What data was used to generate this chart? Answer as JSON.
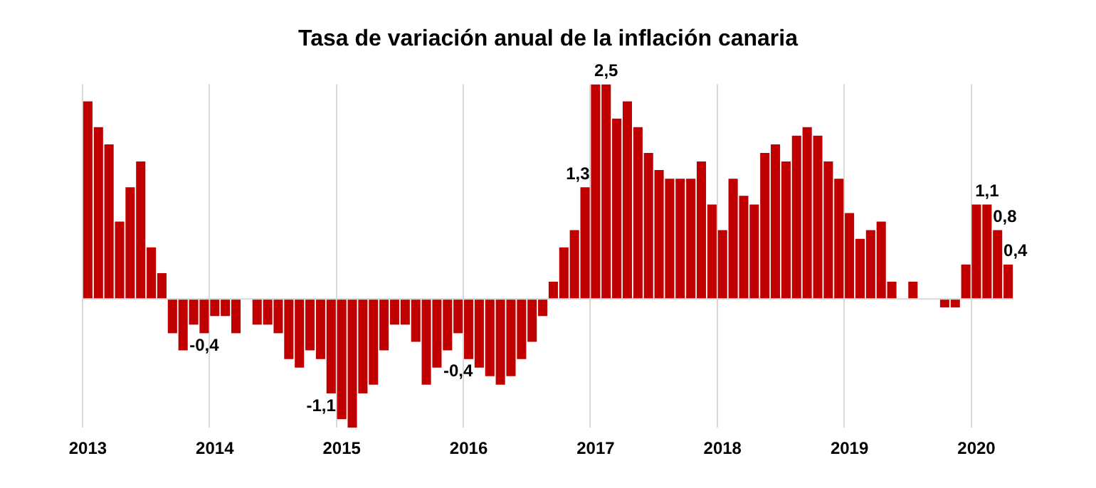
{
  "chart_data": {
    "type": "bar",
    "title": "Tasa de variación anual de la inflación canaria",
    "categories": [
      "2013",
      null,
      null,
      null,
      null,
      null,
      null,
      null,
      null,
      null,
      null,
      null,
      "2014",
      null,
      null,
      null,
      null,
      null,
      null,
      null,
      null,
      null,
      null,
      null,
      "2015",
      null,
      null,
      null,
      null,
      null,
      null,
      null,
      null,
      null,
      null,
      null,
      "2016",
      null,
      null,
      null,
      null,
      null,
      null,
      null,
      null,
      null,
      null,
      null,
      "2017",
      null,
      null,
      null,
      null,
      null,
      null,
      null,
      null,
      null,
      null,
      null,
      "2018",
      null,
      null,
      null,
      null,
      null,
      null,
      null,
      null,
      null,
      null,
      null,
      "2019",
      null,
      null,
      null,
      null,
      null,
      null,
      null,
      null,
      null,
      null,
      null,
      "2020",
      null,
      null,
      null
    ],
    "values": [
      2.3,
      2.0,
      1.8,
      0.9,
      1.3,
      1.6,
      0.6,
      0.3,
      -0.4,
      -0.6,
      -0.3,
      -0.4,
      -0.2,
      -0.2,
      -0.4,
      0,
      -0.3,
      -0.3,
      -0.4,
      -0.7,
      -0.8,
      -0.6,
      -0.7,
      -1.1,
      -1.4,
      -1.5,
      -1.1,
      -1.0,
      -0.6,
      -0.3,
      -0.3,
      -0.5,
      -1.0,
      -0.8,
      -0.6,
      -0.4,
      -0.7,
      -0.8,
      -0.9,
      -1.0,
      -0.9,
      -0.7,
      -0.5,
      -0.2,
      0.2,
      0.6,
      0.8,
      1.3,
      2.5,
      2.5,
      2.1,
      2.3,
      2.0,
      1.7,
      1.5,
      1.4,
      1.4,
      1.4,
      1.6,
      1.1,
      0.8,
      1.4,
      1.2,
      1.1,
      1.7,
      1.8,
      1.6,
      1.9,
      2.0,
      1.9,
      1.6,
      1.4,
      1.0,
      0.7,
      0.8,
      0.9,
      0.2,
      0,
      0.2,
      0,
      0,
      -0.1,
      -0.1,
      0.4,
      1.1,
      1.1,
      0.8,
      0.4
    ],
    "value_labels": [
      null,
      null,
      null,
      null,
      null,
      null,
      null,
      null,
      null,
      null,
      null,
      "-0,4",
      null,
      null,
      null,
      null,
      null,
      null,
      null,
      null,
      null,
      null,
      null,
      "-1,1",
      null,
      null,
      null,
      null,
      null,
      null,
      null,
      null,
      null,
      null,
      null,
      "-0,4",
      null,
      null,
      null,
      null,
      null,
      null,
      null,
      null,
      null,
      null,
      null,
      "1,3",
      null,
      "2,5",
      null,
      null,
      null,
      null,
      null,
      null,
      null,
      null,
      null,
      null,
      null,
      null,
      null,
      null,
      null,
      null,
      null,
      null,
      null,
      null,
      null,
      null,
      null,
      null,
      null,
      null,
      null,
      null,
      null,
      null,
      null,
      null,
      null,
      null,
      null,
      "1,1",
      "0,8",
      "0,4"
    ],
    "color": "#c00000",
    "grid": "x",
    "tick_labels": "x",
    "legend": false
  }
}
